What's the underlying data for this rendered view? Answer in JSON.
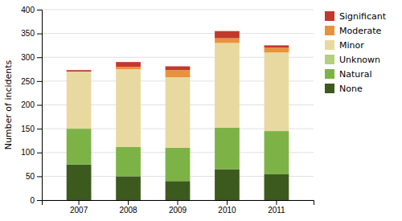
{
  "chart_data": {
    "type": "bar",
    "stacked": true,
    "categories": [
      "2007",
      "2008",
      "2009",
      "2010",
      "2011"
    ],
    "series": [
      {
        "name": "None",
        "color": "#3d5a1e",
        "values": [
          75,
          50,
          40,
          65,
          55
        ]
      },
      {
        "name": "Natural",
        "color": "#7db346",
        "values": [
          75,
          62,
          70,
          87,
          90
        ]
      },
      {
        "name": "Unknown",
        "color": "#b5cf7b",
        "values": [
          0,
          0,
          0,
          0,
          0
        ]
      },
      {
        "name": "Minor",
        "color": "#e8d9a0",
        "values": [
          120,
          163,
          148,
          178,
          165
        ]
      },
      {
        "name": "Moderate",
        "color": "#e8933c",
        "values": [
          0,
          5,
          15,
          10,
          10
        ]
      },
      {
        "name": "Significant",
        "color": "#c0392b",
        "values": [
          3,
          10,
          8,
          15,
          5
        ]
      }
    ],
    "ylabel": "Number of incidents",
    "ylim": [
      0,
      400
    ],
    "yticks": [
      0,
      50,
      100,
      150,
      200,
      250,
      300,
      350,
      400
    ],
    "grid": true,
    "legend": "right"
  }
}
